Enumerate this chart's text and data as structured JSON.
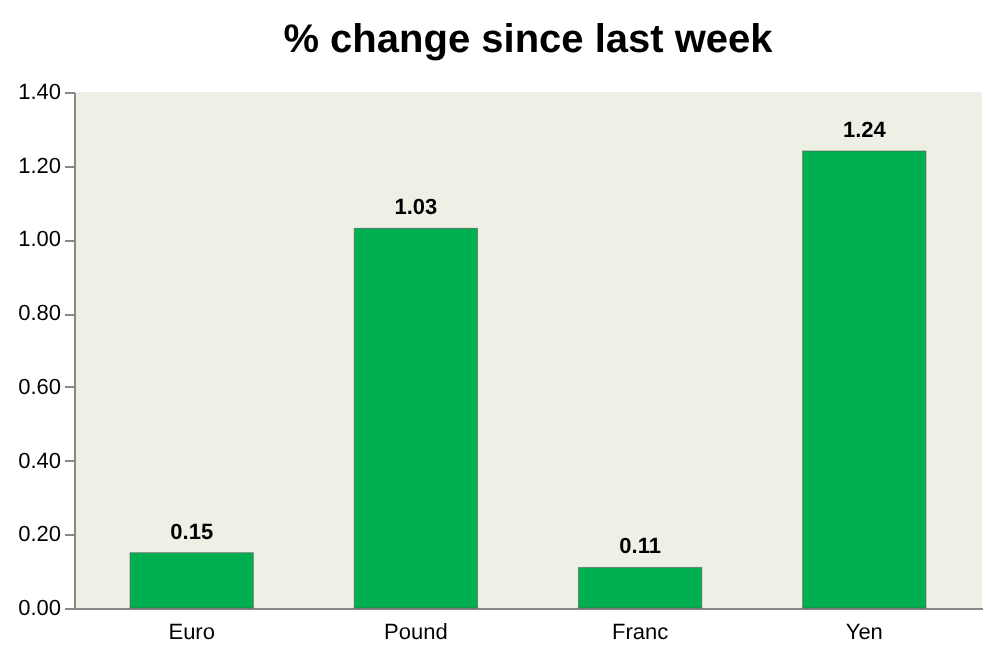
{
  "chart_data": {
    "type": "bar",
    "title": "% change since last week",
    "categories": [
      "Euro",
      "Pound",
      "Franc",
      "Yen"
    ],
    "values": [
      0.15,
      1.03,
      0.11,
      1.24
    ],
    "color": "#00b050",
    "ylim": [
      0,
      1.4
    ],
    "yticks": [
      {
        "value": 0,
        "label": "0.00"
      },
      {
        "value": 0.2,
        "label": "0.20"
      },
      {
        "value": 0.4,
        "label": "0.40"
      },
      {
        "value": 0.6,
        "label": "0.60"
      },
      {
        "value": 0.8,
        "label": "0.80"
      },
      {
        "value": 1.0,
        "label": "1.00"
      },
      {
        "value": 1.2,
        "label": "1.20"
      },
      {
        "value": 1.4,
        "label": "1.40"
      }
    ],
    "data_labels": true,
    "grid": false
  }
}
